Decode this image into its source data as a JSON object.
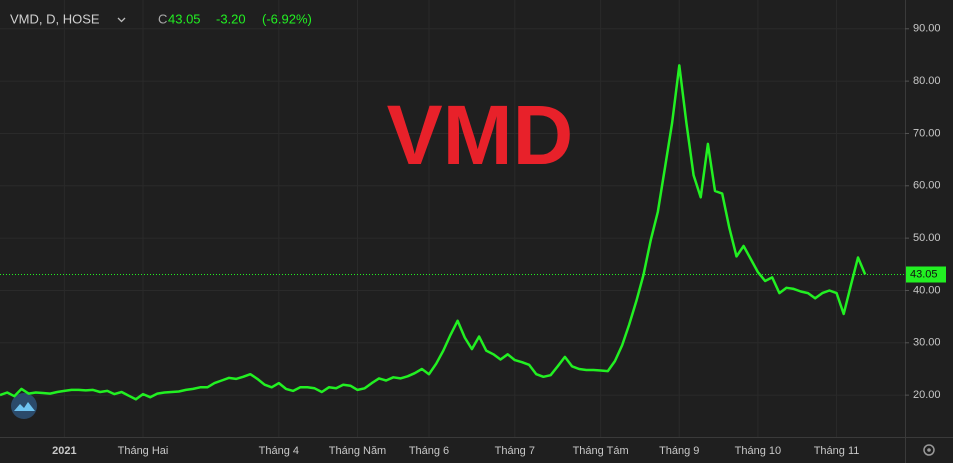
{
  "header": {
    "symbol": "VMD, D, HOSE",
    "close_prefix": "C",
    "close": 43.05,
    "change": "-3.20",
    "change_pct": "(-6.92%)"
  },
  "watermark": "VMD",
  "chart_data": {
    "type": "line",
    "categories": [
      null,
      null,
      null,
      null,
      null,
      null,
      null,
      null,
      null,
      "2021",
      null,
      null,
      null,
      null,
      null,
      null,
      null,
      null,
      null,
      null,
      "Tháng Hai",
      null,
      null,
      null,
      null,
      null,
      null,
      null,
      null,
      null,
      null,
      null,
      null,
      null,
      null,
      null,
      null,
      null,
      null,
      "Tháng 4",
      null,
      null,
      null,
      null,
      null,
      null,
      null,
      null,
      null,
      null,
      "Tháng Năm",
      null,
      null,
      null,
      null,
      null,
      null,
      null,
      null,
      null,
      "Tháng 6",
      null,
      null,
      null,
      null,
      null,
      null,
      null,
      null,
      null,
      null,
      null,
      "Tháng 7",
      null,
      null,
      null,
      null,
      null,
      null,
      null,
      null,
      null,
      null,
      null,
      "Tháng Tám",
      null,
      null,
      null,
      null,
      null,
      null,
      null,
      null,
      null,
      null,
      "Tháng 9",
      null,
      null,
      null,
      null,
      null,
      null,
      null,
      null,
      null,
      null,
      "Tháng 10",
      null,
      null,
      null,
      null,
      null,
      null,
      null,
      null,
      null,
      null,
      "Tháng 11",
      null,
      null,
      null,
      null
    ],
    "series": [
      {
        "name": "VMD",
        "color": "#22f022",
        "values": [
          20.0,
          20.5,
          19.8,
          21.2,
          20.3,
          20.5,
          20.4,
          20.3,
          20.6,
          20.8,
          21.0,
          21.0,
          20.9,
          21.0,
          20.6,
          20.8,
          20.2,
          20.6,
          19.9,
          19.2,
          20.2,
          19.6,
          20.3,
          20.5,
          20.6,
          20.7,
          21.0,
          21.2,
          21.5,
          21.5,
          22.3,
          22.8,
          23.3,
          23.1,
          23.5,
          24.0,
          23.1,
          22.0,
          21.5,
          22.3,
          21.2,
          20.8,
          21.5,
          21.5,
          21.3,
          20.6,
          21.5,
          21.3,
          22.0,
          21.8,
          21.0,
          21.3,
          22.3,
          23.2,
          22.8,
          23.4,
          23.2,
          23.6,
          24.2,
          25.0,
          24.0,
          26.0,
          28.5,
          31.5,
          34.2,
          31.0,
          28.8,
          31.2,
          28.5,
          27.8,
          26.8,
          27.8,
          26.7,
          26.3,
          25.8,
          24.0,
          23.5,
          23.8,
          25.5,
          27.3,
          25.5,
          25.0,
          24.8,
          24.8,
          24.7,
          24.6,
          26.5,
          29.5,
          33.5,
          38.0,
          43.0,
          49.5,
          55.0,
          63.5,
          72.0,
          83.0,
          72.0,
          62.0,
          57.8,
          68.0,
          59.0,
          58.5,
          52.0,
          46.5,
          48.5,
          46.0,
          43.5,
          41.8,
          42.5,
          39.5,
          40.5,
          40.3,
          39.8,
          39.5,
          38.5,
          39.5,
          40.0,
          39.5,
          35.5,
          41.0,
          46.3,
          43.05
        ]
      }
    ],
    "price_line": 43.05,
    "ylim": [
      12,
      95.5
    ],
    "yticks": [
      {
        "value": 20,
        "label": "20.00"
      },
      {
        "value": 30,
        "label": "30.00"
      },
      {
        "value": 40,
        "label": "40.00"
      },
      {
        "value": 50,
        "label": "50.00"
      },
      {
        "value": 60,
        "label": "60.00"
      },
      {
        "value": 70,
        "label": "70.00"
      },
      {
        "value": 80,
        "label": "80.00"
      },
      {
        "value": 90,
        "label": "90.00"
      }
    ],
    "grid": true
  }
}
